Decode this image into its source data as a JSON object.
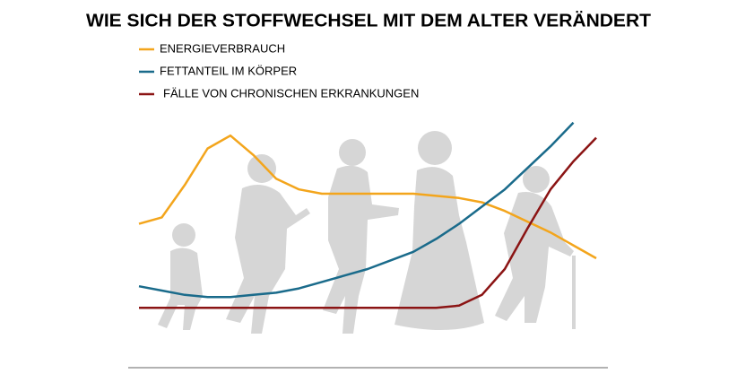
{
  "chart_data": {
    "type": "line",
    "title": "WIE SICH DER STOFFWECHSEL MIT DEM ALTER VERÄNDERT",
    "x": [
      0,
      5,
      10,
      15,
      20,
      25,
      30,
      35,
      40,
      45,
      50,
      55,
      60,
      65,
      70,
      75,
      80,
      85,
      90,
      95,
      100
    ],
    "xlim": [
      0,
      100
    ],
    "ylim": [
      0,
      100
    ],
    "series": [
      {
        "name": "ENERGIEVERBRAUCH",
        "color": "#f3a51c",
        "values": [
          46,
          49,
          64,
          81,
          87,
          78,
          67,
          62,
          60,
          60,
          60,
          60,
          60,
          59,
          58,
          56,
          52,
          47,
          42,
          36,
          30
        ]
      },
      {
        "name": "FETTANTEIL IM KÖRPER",
        "color": "#1a6b8b",
        "values": [
          17,
          15,
          13,
          12,
          12,
          13,
          14,
          16,
          19,
          22,
          25,
          29,
          33,
          39,
          46,
          54,
          62,
          72,
          82,
          93,
          null
        ]
      },
      {
        "name": "FÄLLE VON CHRONISCHEN ERKRANKUNGEN",
        "color": "#8b1414",
        "values": [
          7,
          7,
          7,
          7,
          7,
          7,
          7,
          7,
          7,
          7,
          7,
          7,
          7,
          7,
          8,
          13,
          25,
          44,
          62,
          75,
          86
        ]
      }
    ]
  }
}
